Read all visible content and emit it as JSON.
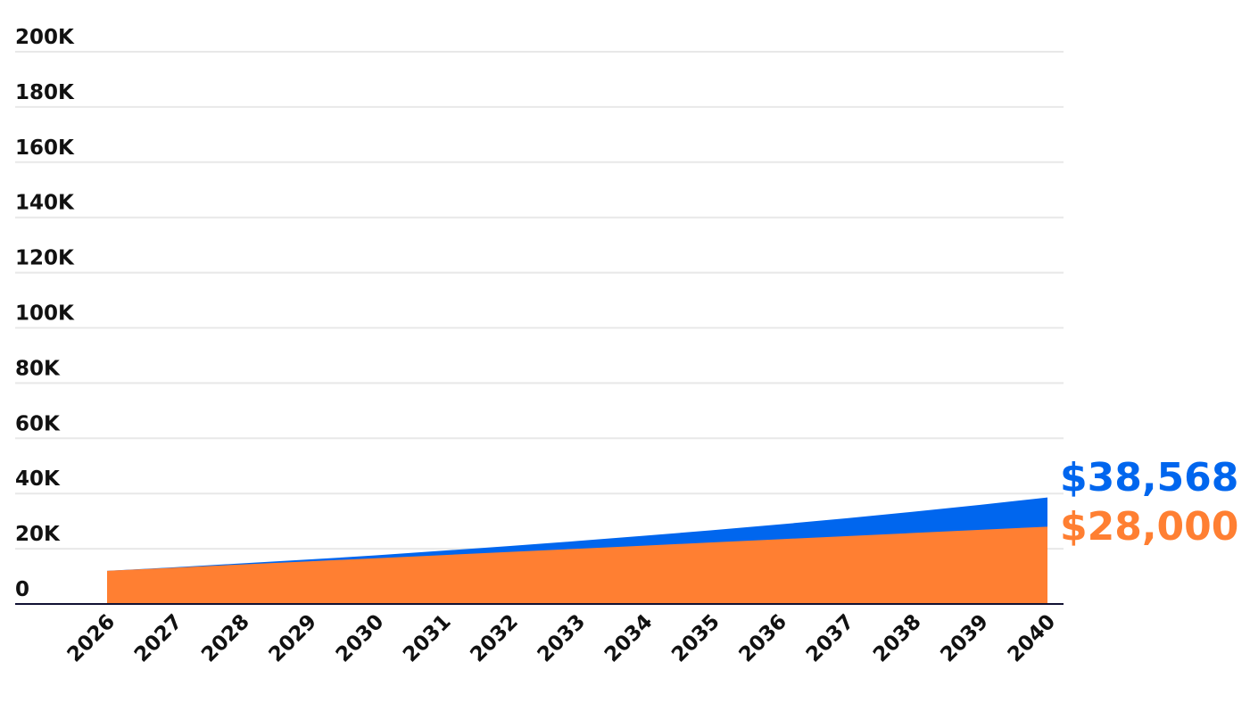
{
  "chart_data": {
    "type": "area",
    "title": "",
    "xlabel": "",
    "ylabel": "",
    "x": [
      2026,
      2027,
      2028,
      2029,
      2030,
      2031,
      2032,
      2033,
      2034,
      2035,
      2036,
      2037,
      2038,
      2039,
      2040
    ],
    "x_labels": [
      "2026",
      "2027",
      "2028",
      "2029",
      "2030",
      "2031",
      "2032",
      "2033",
      "2034",
      "2035",
      "2036",
      "2037",
      "2038",
      "2039",
      "2040"
    ],
    "ylim": [
      0,
      200000
    ],
    "y_ticks": [
      0,
      20000,
      40000,
      60000,
      80000,
      100000,
      120000,
      140000,
      160000,
      180000,
      200000
    ],
    "y_tick_labels": [
      "0",
      "20K",
      "40K",
      "60K",
      "80K",
      "100K",
      "120K",
      "140K",
      "160K",
      "180K",
      "200K"
    ],
    "grid": true,
    "legend": "none",
    "series": [
      {
        "color": "#0066ee",
        "values": [
          12000,
          13300,
          14700,
          16100,
          17600,
          19300,
          21000,
          22800,
          24700,
          26700,
          28800,
          31000,
          33400,
          35900,
          38568
        ]
      },
      {
        "color": "#ff7f32",
        "values": [
          12000,
          13140,
          14290,
          15430,
          16570,
          17710,
          18860,
          20000,
          21140,
          22290,
          23430,
          24570,
          25710,
          26860,
          28000
        ]
      }
    ],
    "end_labels": [
      "$38,568",
      "$28,000"
    ]
  }
}
